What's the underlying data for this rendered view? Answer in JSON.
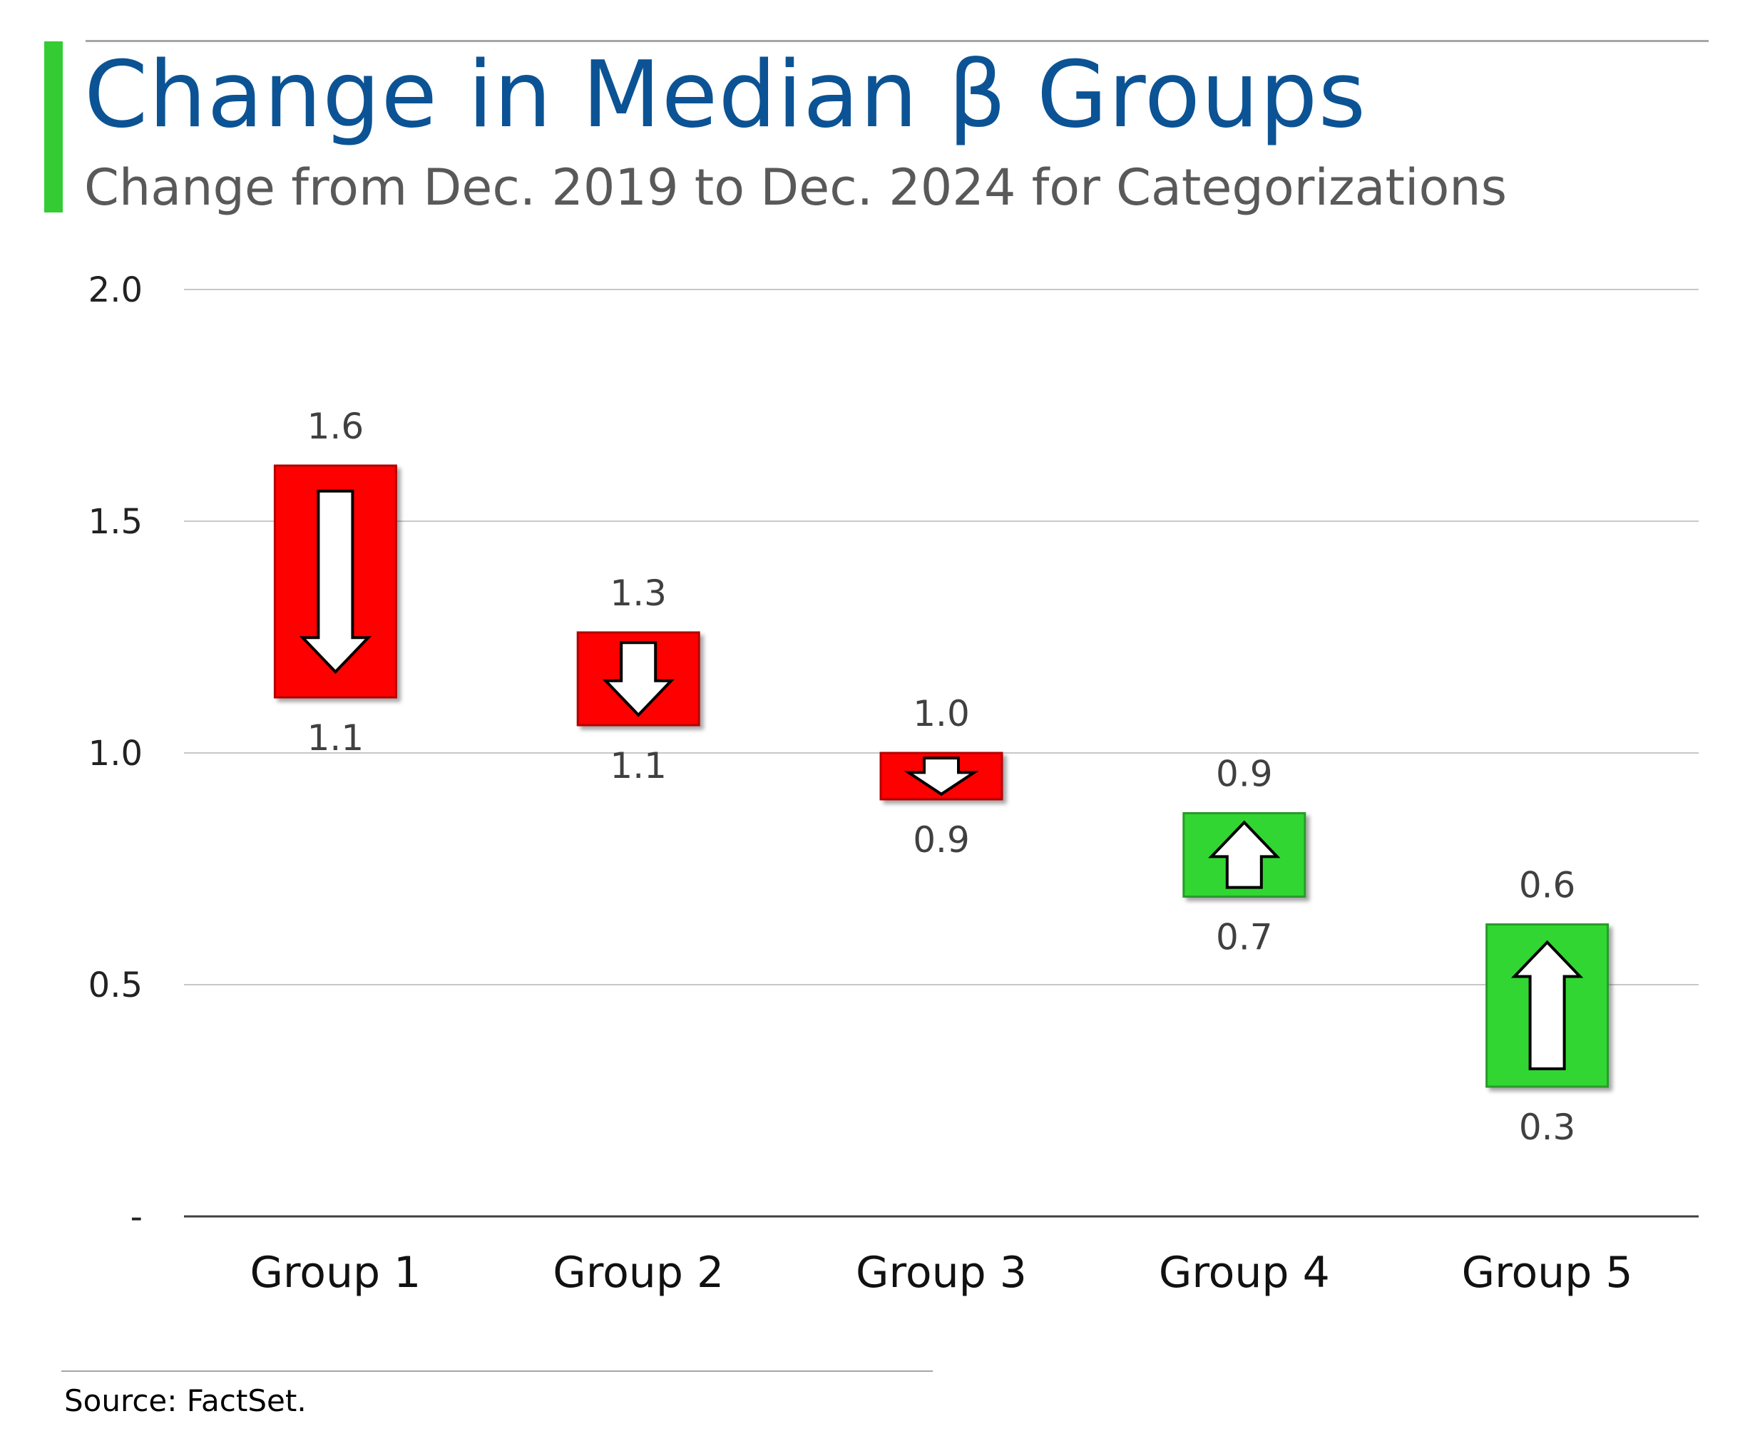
{
  "title": "Change in Median β Groups",
  "subtitle": "Change from Dec. 2019 to Dec. 2024 for Categorizations",
  "source": "Source: FactSet.",
  "colors": {
    "title": "#0b5394",
    "accent": "#33cc33",
    "decrease": "#ff0000",
    "increase": "#33d633",
    "grid": "#c8c8c8",
    "label": "#404040"
  },
  "chart_data": {
    "type": "bar",
    "subtype": "floating-change",
    "title": "Change in Median β Groups",
    "subtitle": "Change from Dec. 2019 to Dec. 2024 for Categorizations",
    "categories": [
      "Group 1",
      "Group 2",
      "Group 3",
      "Group 4",
      "Group 5"
    ],
    "series": [
      {
        "values": [
          1.62,
          1.26,
          1.0,
          0.87,
          0.63
        ]
      },
      {
        "values": [
          1.12,
          1.06,
          0.9,
          0.69,
          0.28
        ]
      }
    ],
    "top_labels": [
      "1.6",
      "1.3",
      "1.0",
      "0.9",
      "0.6"
    ],
    "bottom_labels": [
      "1.1",
      "1.1",
      "0.9",
      "0.7",
      "0.3"
    ],
    "direction": [
      "down",
      "down",
      "down",
      "up",
      "up"
    ],
    "ylim": [
      0,
      2.0
    ],
    "yticks": [
      0,
      0.5,
      1.0,
      1.5,
      2.0
    ],
    "ytick_labels": [
      "-",
      "0.5",
      "1.0",
      "1.5",
      "2.0"
    ],
    "grid": true,
    "legend": "none",
    "xlabel": "",
    "ylabel": ""
  }
}
